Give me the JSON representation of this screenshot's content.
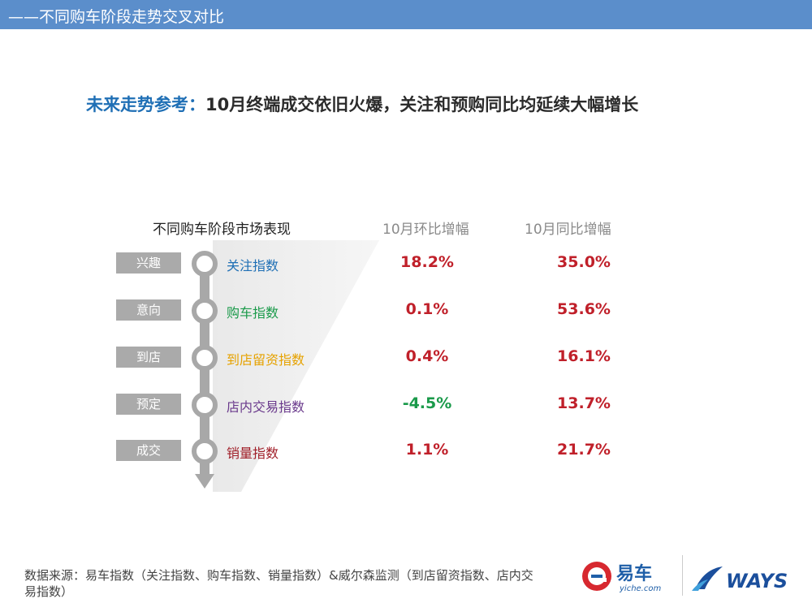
{
  "header": {
    "title": "——不同购车阶段走势交叉对比"
  },
  "headline": {
    "lead": "未来走势参考：",
    "text": "10月终端成交依旧火爆，关注和预购同比均延续大幅增长"
  },
  "columns": {
    "stage": "不同购车阶段市场表现",
    "mom": "10月环比增幅",
    "yoy": "10月同比增幅"
  },
  "rows": [
    {
      "stage": "兴趣",
      "metric": "关注指数",
      "metric_color": "#1f6fb5",
      "mom": "18.2%",
      "mom_color": "#c0202a",
      "yoy": "35.0%",
      "yoy_color": "#c0202a"
    },
    {
      "stage": "意向",
      "metric": "购车指数",
      "metric_color": "#1a9a4a",
      "mom": "0.1%",
      "mom_color": "#c0202a",
      "yoy": "53.6%",
      "yoy_color": "#c0202a"
    },
    {
      "stage": "到店",
      "metric": "到店留资指数",
      "metric_color": "#e6a200",
      "mom": "0.4%",
      "mom_color": "#c0202a",
      "yoy": "16.1%",
      "yoy_color": "#c0202a"
    },
    {
      "stage": "预定",
      "metric": "店内交易指数",
      "metric_color": "#6a3a8c",
      "mom": "-4.5%",
      "mom_color": "#1a9a4a",
      "yoy": "13.7%",
      "yoy_color": "#c0202a"
    },
    {
      "stage": "成交",
      "metric": "销量指数",
      "metric_color": "#a01e28",
      "mom": "1.1%",
      "mom_color": "#c0202a",
      "yoy": "21.7%",
      "yoy_color": "#c0202a"
    }
  ],
  "footnote": "数据来源：易车指数（关注指数、购车指数、销量指数）&威尔森监测（到店留资指数、店内交易指数）",
  "logos": {
    "yiche_name": "易车",
    "yiche_domain": "yiche.com",
    "ways_name": "WAYS",
    "yiche_icon": "e-circle-logo-icon",
    "ways_icon": "swoosh-logo-icon",
    "yiche_red": "#d7282f",
    "yiche_blue": "#1f5fa8",
    "ways_blue": "#1b4f9c"
  }
}
